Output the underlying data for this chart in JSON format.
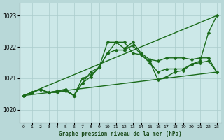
{
  "xlabel": "Graphe pression niveau de la mer (hPa)",
  "xlim": [
    -0.5,
    23.5
  ],
  "ylim": [
    1019.6,
    1023.4
  ],
  "yticks": [
    1020,
    1021,
    1022,
    1023
  ],
  "xticks": [
    0,
    1,
    2,
    3,
    4,
    5,
    6,
    7,
    8,
    9,
    10,
    11,
    12,
    13,
    14,
    15,
    16,
    17,
    18,
    19,
    20,
    21,
    22,
    23
  ],
  "bg_color": "#cce8e8",
  "grid_color": "#aacccc",
  "line_color": "#1a6b1a",
  "background_outer": "#b8d8d8",
  "series": [
    {
      "x": [
        0,
        1,
        2,
        3,
        4,
        5,
        6,
        7,
        8,
        9,
        10,
        11,
        12,
        13,
        14,
        15,
        16,
        17,
        18,
        19,
        20,
        21,
        22,
        23
      ],
      "y": [
        1020.45,
        1020.55,
        1020.65,
        1020.55,
        1020.6,
        1020.65,
        1020.45,
        1020.85,
        1021.05,
        1021.35,
        1021.8,
        1022.15,
        1021.95,
        1022.15,
        1021.8,
        1021.6,
        1021.55,
        1021.65,
        1021.65,
        1021.65,
        1021.6,
        1021.65,
        1021.65,
        1021.2
      ],
      "marker": "D",
      "ms": 2.5,
      "lw": 1.0
    },
    {
      "x": [
        0,
        1,
        2,
        3,
        4,
        5,
        6,
        7,
        8,
        9,
        10,
        11,
        12,
        13,
        14,
        15,
        16,
        17,
        18,
        19,
        20,
        21,
        22,
        23
      ],
      "y": [
        1020.45,
        1020.55,
        1020.65,
        1020.55,
        1020.6,
        1020.65,
        1020.45,
        1020.85,
        1021.2,
        1021.35,
        1022.15,
        1022.15,
        1022.15,
        1021.8,
        1021.75,
        1021.55,
        1020.95,
        1021.05,
        1021.2,
        1021.25,
        1021.45,
        1021.55,
        1022.45,
        1023.0
      ],
      "marker": "D",
      "ms": 2.5,
      "lw": 1.0
    },
    {
      "x": [
        0,
        1,
        2,
        3,
        4,
        5,
        6,
        7,
        8,
        9,
        10,
        11,
        12,
        13,
        14,
        15,
        16,
        17,
        18,
        19,
        20,
        21,
        22,
        23
      ],
      "y": [
        1020.45,
        1020.55,
        1020.65,
        1020.55,
        1020.55,
        1020.6,
        1020.45,
        1021.0,
        1021.1,
        1021.35,
        1021.8,
        1021.9,
        1021.9,
        1022.05,
        1021.75,
        1021.5,
        1021.2,
        1021.3,
        1021.3,
        1021.3,
        1021.45,
        1021.5,
        1021.55,
        1021.2
      ],
      "marker": "D",
      "ms": 2.5,
      "lw": 1.0
    },
    {
      "x": [
        0,
        23
      ],
      "y": [
        1020.45,
        1021.2
      ],
      "marker": null,
      "ms": 0,
      "lw": 1.0
    },
    {
      "x": [
        0,
        23
      ],
      "y": [
        1020.45,
        1023.0
      ],
      "marker": null,
      "ms": 0,
      "lw": 1.0
    }
  ]
}
